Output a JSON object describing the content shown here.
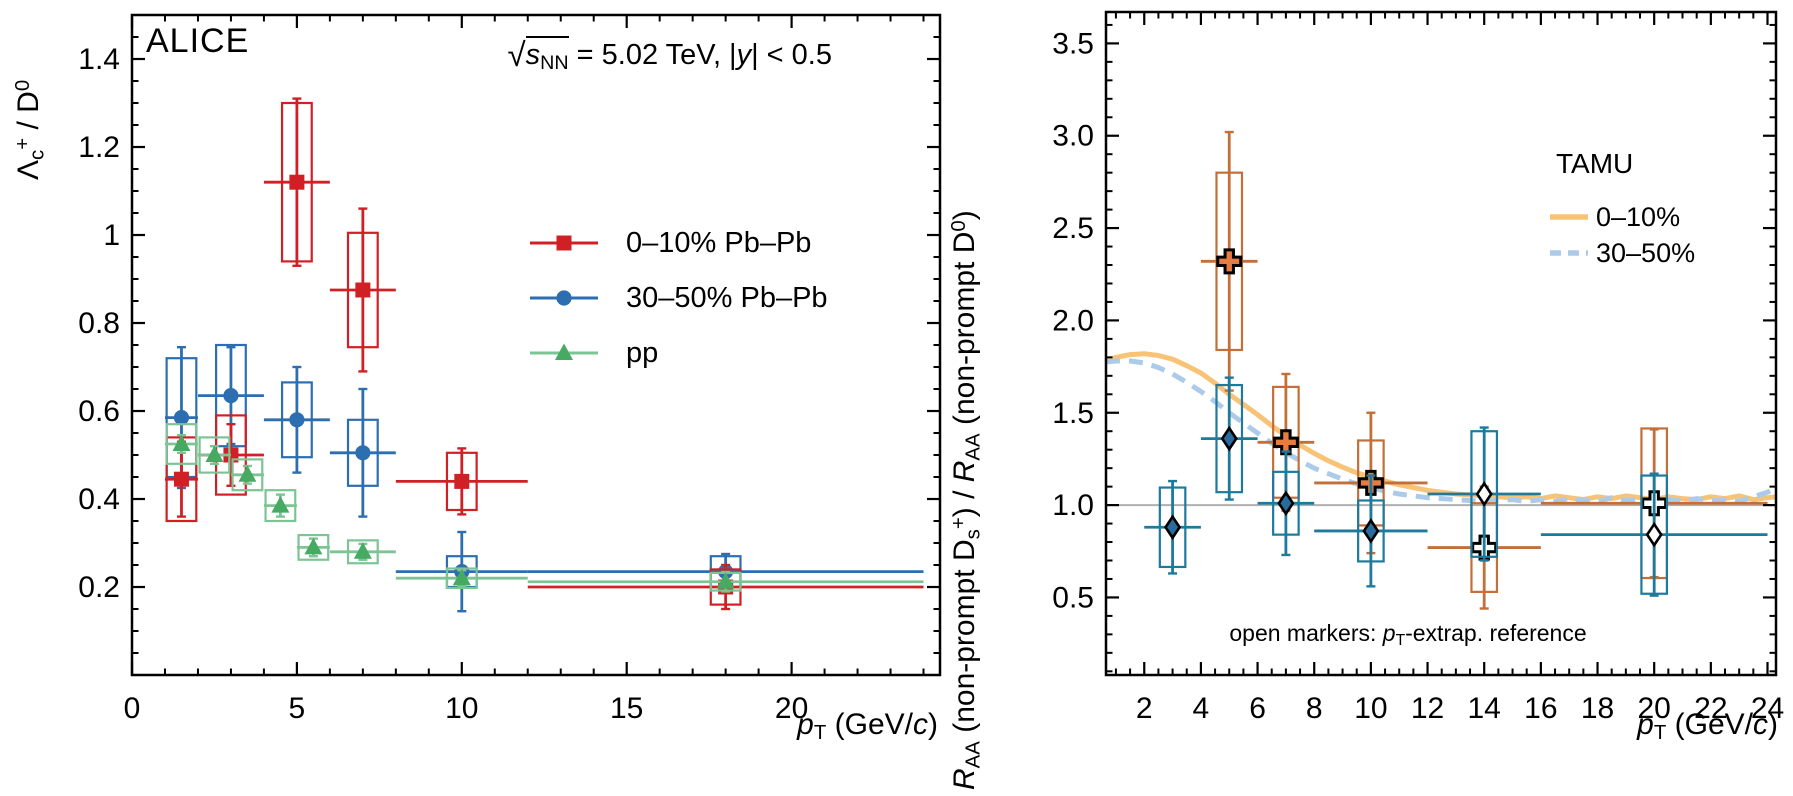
{
  "figure": {
    "background": "#ffffff",
    "frame_color": "#000000"
  },
  "left_panel": {
    "alice_label": "ALICE",
    "subtitle": {
      "radical": "√",
      "s": "s",
      "s_sub": "NN",
      "eq": " = 5.02 TeV, |",
      "y": "y",
      "tail": "| < 0.5"
    },
    "ylabel_parts": {
      "lambda": "Λ",
      "lambda_sub": "c",
      "lambda_sup": "+",
      "mid": " / D",
      "d_sup": "0"
    },
    "xlabel_parts": {
      "p": "p",
      "sub": "T",
      "open": " (GeV/",
      "c": "c",
      "close": ")"
    }
  },
  "right_panel": {
    "ylabel_parts": {
      "r1": "R",
      "r1_sub": "AA",
      "t1": " (non-prompt D",
      "ds_sub": "s",
      "ds_sup": "+",
      "t2": ") / ",
      "r2": "R",
      "r2_sub": "AA",
      "t3": " (non-prompt D",
      "d0_sup": "0",
      "t4": ")"
    },
    "xlabel_parts": {
      "p": "p",
      "sub": "T",
      "open": " (GeV/",
      "c": "c",
      "close": ")"
    }
  },
  "chart_data": [
    {
      "id": "lambda-c-over-d0",
      "type": "scatter",
      "title": "sqrt(s_NN) = 5.02 TeV, |y| < 0.5",
      "xlabel": "pT (GeV/c)",
      "ylabel": "Lambda_c+ / D0",
      "xlim": [
        0,
        24.5
      ],
      "ylim": [
        0,
        1.5
      ],
      "grid": false,
      "xticks": {
        "major": [
          0,
          5,
          10,
          15,
          20
        ],
        "minor_step": 1,
        "format": "auto"
      },
      "yticks": {
        "major": [
          0.2,
          0.4,
          0.6,
          0.8,
          1,
          1.2,
          1.4
        ],
        "minor_step": 0.05,
        "format": "auto"
      },
      "draw_order": [
        1,
        0,
        2
      ],
      "legend_position": "center-right-upper",
      "series": [
        {
          "name": "0–10% Pb–Pb",
          "marker": "square",
          "color": "#d02026",
          "marker_fill": "#d02026",
          "points": [
            {
              "x": 1.5,
              "xlo": 1,
              "xhi": 2,
              "y": 0.445,
              "stat": 0.085,
              "sys": 0.095
            },
            {
              "x": 3,
              "xlo": 2,
              "xhi": 4,
              "y": 0.5,
              "stat": 0.07,
              "sys": 0.09
            },
            {
              "x": 5,
              "xlo": 4,
              "xhi": 6,
              "y": 1.12,
              "stat": 0.19,
              "sys": 0.18
            },
            {
              "x": 7,
              "xlo": 6,
              "xhi": 8,
              "y": 0.875,
              "stat": 0.185,
              "sys": 0.13
            },
            {
              "x": 10,
              "xlo": 8,
              "xhi": 12,
              "y": 0.44,
              "stat": 0.075,
              "sys": 0.065
            },
            {
              "x": 18,
              "xlo": 12,
              "xhi": 24,
              "y": 0.2,
              "stat": 0.05,
              "sys": 0.04
            }
          ]
        },
        {
          "name": "30–50% Pb–Pb",
          "marker": "circle",
          "color": "#2d6eb0",
          "marker_fill": "#2d6eb0",
          "points": [
            {
              "x": 1.5,
              "xlo": 1,
              "xhi": 2,
              "y": 0.585,
              "stat": 0.16,
              "sys": 0.135
            },
            {
              "x": 3,
              "xlo": 2,
              "xhi": 4,
              "y": 0.635,
              "stat": 0.11,
              "sys": 0.115
            },
            {
              "x": 5,
              "xlo": 4,
              "xhi": 6,
              "y": 0.58,
              "stat": 0.12,
              "sys": 0.085
            },
            {
              "x": 7,
              "xlo": 6,
              "xhi": 8,
              "y": 0.505,
              "stat": 0.145,
              "sys": 0.075
            },
            {
              "x": 10,
              "xlo": 8,
              "xhi": 12,
              "y": 0.235,
              "stat": 0.09,
              "sys": 0.035
            },
            {
              "x": 18,
              "xlo": 12,
              "xhi": 24,
              "y": 0.235,
              "stat": 0.04,
              "sys": 0.035
            }
          ]
        },
        {
          "name": "pp",
          "marker": "triangle",
          "color": "#7cc494",
          "marker_fill": "#47aa63",
          "points": [
            {
              "x": 1.5,
              "xlo": 1,
              "xhi": 2,
              "y": 0.525,
              "stat": 0.02,
              "sys": 0.045
            },
            {
              "x": 2.5,
              "xlo": 2,
              "xhi": 3,
              "y": 0.5,
              "stat": 0.02,
              "sys": 0.04
            },
            {
              "x": 3.5,
              "xlo": 3,
              "xhi": 4,
              "y": 0.455,
              "stat": 0.02,
              "sys": 0.035
            },
            {
              "x": 4.5,
              "xlo": 4,
              "xhi": 5,
              "y": 0.385,
              "stat": 0.025,
              "sys": 0.035
            },
            {
              "x": 5.5,
              "xlo": 5,
              "xhi": 6,
              "y": 0.29,
              "stat": 0.02,
              "sys": 0.028
            },
            {
              "x": 7,
              "xlo": 6,
              "xhi": 8,
              "y": 0.28,
              "stat": 0.018,
              "sys": 0.026
            },
            {
              "x": 10,
              "xlo": 8,
              "xhi": 12,
              "y": 0.22,
              "stat": 0.018,
              "sys": 0.022
            },
            {
              "x": 18,
              "xlo": 12,
              "xhi": 24,
              "y": 0.212,
              "stat": 0.022,
              "sys": 0.02
            }
          ]
        }
      ]
    },
    {
      "id": "raa-nonprompt-ds-over-d0",
      "type": "scatter",
      "title": "",
      "xlabel": "pT (GeV/c)",
      "ylabel": "R_AA (non-prompt Ds+) / R_AA (non-prompt D0)",
      "xlim": [
        0.65,
        24.3
      ],
      "ylim": [
        0.08,
        3.67
      ],
      "grid": false,
      "xticks": {
        "major": [
          2,
          4,
          6,
          8,
          10,
          12,
          14,
          16,
          18,
          20,
          22,
          24
        ],
        "minor_step": 0.5,
        "format": "auto"
      },
      "yticks": {
        "major": [
          0.5,
          1,
          1.5,
          2,
          2.5,
          3,
          3.5
        ],
        "minor_step": 0.1,
        "format": "fixed1"
      },
      "baseline": {
        "y": 1.0,
        "color": "#b0b0b0"
      },
      "curves_title": "TAMU",
      "curves": [
        {
          "name": "0–10%",
          "style": "solid",
          "color": "#f8c377",
          "x": [
            0.65,
            1,
            1.5,
            2,
            2.5,
            3,
            3.5,
            4,
            4.5,
            5,
            5.5,
            6,
            6.5,
            7,
            7.5,
            8,
            8.5,
            9,
            9.5,
            10,
            10.5,
            11,
            11.5,
            12,
            12.5,
            13,
            13.5,
            14,
            14.5,
            15,
            15.5,
            16,
            16.5,
            17,
            17.5,
            18,
            18.5,
            19,
            19.5,
            20,
            20.5,
            21,
            21.5,
            22,
            22.5,
            23,
            23.5,
            24,
            24.3
          ],
          "y": [
            1.785,
            1.8,
            1.815,
            1.82,
            1.81,
            1.79,
            1.755,
            1.715,
            1.66,
            1.6,
            1.545,
            1.49,
            1.43,
            1.375,
            1.325,
            1.28,
            1.24,
            1.205,
            1.175,
            1.15,
            1.13,
            1.11,
            1.095,
            1.08,
            1.07,
            1.06,
            1.055,
            1.05,
            1.045,
            1.04,
            1.045,
            1.035,
            1.05,
            1.04,
            1.03,
            1.045,
            1.035,
            1.05,
            1.04,
            1.03,
            1.045,
            1.035,
            1.03,
            1.045,
            1.035,
            1.05,
            1.03,
            1.04,
            1.045
          ]
        },
        {
          "name": "30–50%",
          "style": "dashed",
          "color": "#accbe8",
          "x": [
            0.65,
            1,
            1.5,
            2,
            2.5,
            3,
            3.5,
            4,
            4.5,
            5,
            5.5,
            6,
            6.5,
            7,
            7.5,
            8,
            8.5,
            9,
            9.5,
            10,
            10.5,
            11,
            11.5,
            12,
            12.5,
            13,
            13.5,
            14,
            14.5,
            15,
            15.5,
            16,
            16.5,
            17,
            17.5,
            18,
            18.5,
            19,
            19.5,
            20,
            20.5,
            21,
            21.5,
            22,
            22.5,
            23,
            23.5,
            24,
            24.3
          ],
          "y": [
            1.775,
            1.78,
            1.78,
            1.77,
            1.745,
            1.71,
            1.665,
            1.615,
            1.56,
            1.5,
            1.445,
            1.39,
            1.335,
            1.285,
            1.24,
            1.2,
            1.17,
            1.14,
            1.115,
            1.095,
            1.075,
            1.06,
            1.05,
            1.04,
            1.035,
            1.03,
            1.025,
            1.02,
            1.025,
            1.03,
            1.02,
            1.03,
            1.02,
            1.035,
            1.025,
            1.02,
            1.04,
            1.025,
            1.035,
            1.02,
            1.03,
            1.02,
            1.035,
            1.025,
            1.03,
            1.02,
            1.045,
            1.07,
            1.09
          ]
        }
      ],
      "draw_order": [
        0,
        1
      ],
      "series": [
        {
          "name": "0–10%",
          "marker": "cross",
          "color": "#c36f3a",
          "marker_fill": "#e47c43",
          "points": [
            {
              "x": 5,
              "xlo": 4,
              "xhi": 6,
              "y": 2.32,
              "stat": 0.7,
              "sys": 0.48,
              "open": false
            },
            {
              "x": 7,
              "xlo": 6,
              "xhi": 8,
              "y": 1.34,
              "stat": 0.37,
              "sys": 0.3,
              "open": false
            },
            {
              "x": 10,
              "xlo": 8,
              "xhi": 12,
              "y": 1.12,
              "stat": 0.38,
              "sys": 0.23,
              "open": false
            },
            {
              "x": 14,
              "xlo": 12,
              "xhi": 16,
              "y": 0.77,
              "stat": 0.33,
              "sys": 0.24,
              "open": true
            },
            {
              "x": 20,
              "xlo": 16,
              "xhi": 24,
              "y": 1.01,
              "stat": 0.4,
              "sys": 0.405,
              "open": true
            }
          ]
        },
        {
          "name": "30–50%",
          "marker": "diamond",
          "color": "#1d7a9c",
          "marker_fill": "#2a6a9d",
          "points": [
            {
              "x": 3,
              "xlo": 2,
              "xhi": 4,
              "y": 0.88,
              "stat": 0.25,
              "sys": 0.215,
              "open": false
            },
            {
              "x": 5,
              "xlo": 4,
              "xhi": 6,
              "y": 1.36,
              "stat": 0.33,
              "sys": 0.29,
              "open": false
            },
            {
              "x": 7,
              "xlo": 6,
              "xhi": 8,
              "y": 1.01,
              "stat": 0.28,
              "sys": 0.17,
              "open": false
            },
            {
              "x": 10,
              "xlo": 8,
              "xhi": 12,
              "y": 0.86,
              "stat": 0.3,
              "sys": 0.165,
              "open": false
            },
            {
              "x": 14,
              "xlo": 12,
              "xhi": 16,
              "y": 1.06,
              "stat": 0.36,
              "sys": 0.34,
              "open": true
            },
            {
              "x": 20,
              "xlo": 16,
              "xhi": 24,
              "y": 0.84,
              "stat": 0.33,
              "sys": 0.32,
              "open": true
            }
          ]
        },
        {
          "name": "open markers",
          "note": "pT-extrapolated reference"
        }
      ],
      "annotation_parts": {
        "prefix": "open markers: ",
        "p": "p",
        "sub": "T",
        "rest": "-extrap. reference"
      }
    }
  ]
}
